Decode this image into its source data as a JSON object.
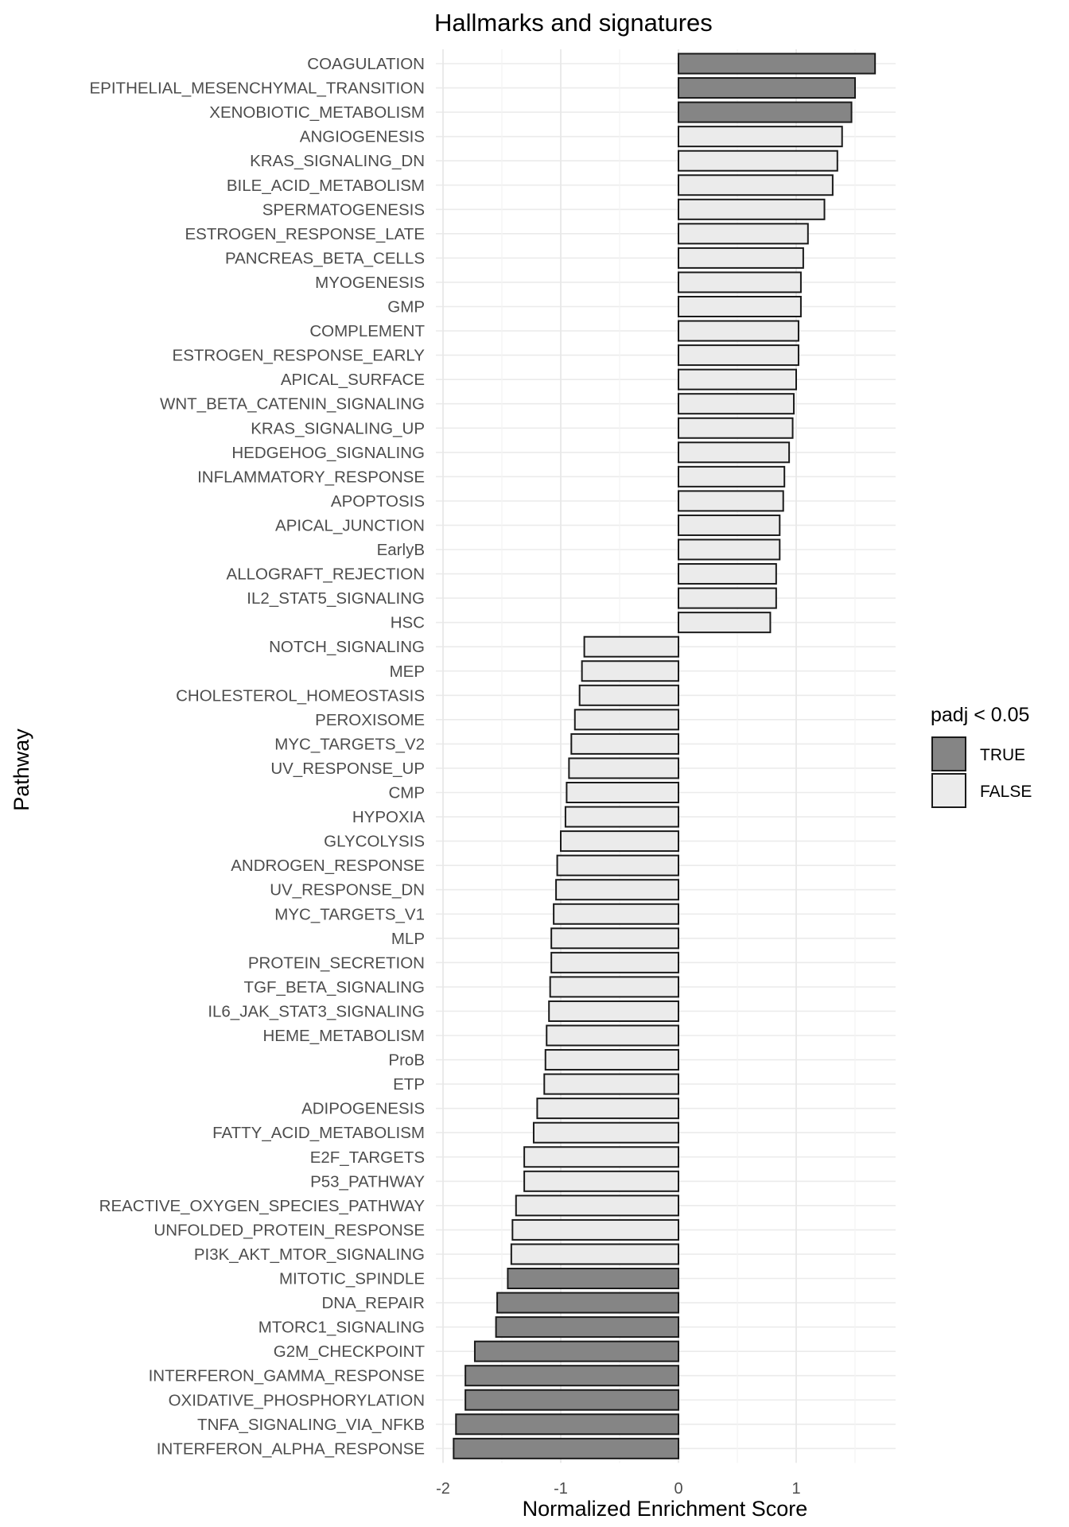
{
  "chart_data": {
    "type": "bar",
    "orientation": "horizontal",
    "title": "Hallmarks and signatures",
    "xlabel": "Normalized Enrichment Score",
    "ylabel": "Pathway",
    "xlim": [
      -2.05,
      1.85
    ],
    "x_ticks": [
      "-2",
      "-1",
      "0",
      "1"
    ],
    "x_tick_values": [
      -2,
      -1,
      0,
      1
    ],
    "grid": true,
    "legend": {
      "title": "padj < 0.05",
      "position": "right",
      "entries": [
        {
          "label": "TRUE",
          "color": "#858585"
        },
        {
          "label": "FALSE",
          "color": "#ebebeb"
        }
      ]
    },
    "bar_outline_color": "#1a1a1a",
    "categories": [
      "COAGULATION",
      "EPITHELIAL_MESENCHYMAL_TRANSITION",
      "XENOBIOTIC_METABOLISM",
      "ANGIOGENESIS",
      "KRAS_SIGNALING_DN",
      "BILE_ACID_METABOLISM",
      "SPERMATOGENESIS",
      "ESTROGEN_RESPONSE_LATE",
      "PANCREAS_BETA_CELLS",
      "MYOGENESIS",
      "GMP",
      "COMPLEMENT",
      "ESTROGEN_RESPONSE_EARLY",
      "APICAL_SURFACE",
      "WNT_BETA_CATENIN_SIGNALING",
      "KRAS_SIGNALING_UP",
      "HEDGEHOG_SIGNALING",
      "INFLAMMATORY_RESPONSE",
      "APOPTOSIS",
      "APICAL_JUNCTION",
      "EarlyB",
      "ALLOGRAFT_REJECTION",
      "IL2_STAT5_SIGNALING",
      "HSC",
      "NOTCH_SIGNALING",
      "MEP",
      "CHOLESTEROL_HOMEOSTASIS",
      "PEROXISOME",
      "MYC_TARGETS_V2",
      "UV_RESPONSE_UP",
      "CMP",
      "HYPOXIA",
      "GLYCOLYSIS",
      "ANDROGEN_RESPONSE",
      "UV_RESPONSE_DN",
      "MYC_TARGETS_V1",
      "MLP",
      "PROTEIN_SECRETION",
      "TGF_BETA_SIGNALING",
      "IL6_JAK_STAT3_SIGNALING",
      "HEME_METABOLISM",
      "ProB",
      "ETP",
      "ADIPOGENESIS",
      "FATTY_ACID_METABOLISM",
      "E2F_TARGETS",
      "P53_PATHWAY",
      "REACTIVE_OXYGEN_SPECIES_PATHWAY",
      "UNFOLDED_PROTEIN_RESPONSE",
      "PI3K_AKT_MTOR_SIGNALING",
      "MITOTIC_SPINDLE",
      "DNA_REPAIR",
      "MTORC1_SIGNALING",
      "G2M_CHECKPOINT",
      "INTERFERON_GAMMA_RESPONSE",
      "OXIDATIVE_PHOSPHORYLATION",
      "TNFA_SIGNALING_VIA_NFKB",
      "INTERFERON_ALPHA_RESPONSE"
    ],
    "values": [
      1.67,
      1.5,
      1.47,
      1.39,
      1.35,
      1.31,
      1.24,
      1.1,
      1.06,
      1.04,
      1.04,
      1.02,
      1.02,
      1.0,
      0.98,
      0.97,
      0.94,
      0.9,
      0.89,
      0.86,
      0.86,
      0.83,
      0.83,
      0.78,
      -0.8,
      -0.82,
      -0.84,
      -0.88,
      -0.91,
      -0.93,
      -0.95,
      -0.96,
      -1.0,
      -1.03,
      -1.04,
      -1.06,
      -1.08,
      -1.08,
      -1.09,
      -1.1,
      -1.12,
      -1.13,
      -1.14,
      -1.2,
      -1.23,
      -1.31,
      -1.31,
      -1.38,
      -1.41,
      -1.42,
      -1.45,
      -1.54,
      -1.55,
      -1.73,
      -1.81,
      -1.81,
      -1.89,
      -1.91
    ],
    "padj_significant": [
      true,
      true,
      true,
      false,
      false,
      false,
      false,
      false,
      false,
      false,
      false,
      false,
      false,
      false,
      false,
      false,
      false,
      false,
      false,
      false,
      false,
      false,
      false,
      false,
      false,
      false,
      false,
      false,
      false,
      false,
      false,
      false,
      false,
      false,
      false,
      false,
      false,
      false,
      false,
      false,
      false,
      false,
      false,
      false,
      false,
      false,
      false,
      false,
      false,
      false,
      true,
      true,
      true,
      true,
      true,
      true,
      true,
      true
    ]
  }
}
